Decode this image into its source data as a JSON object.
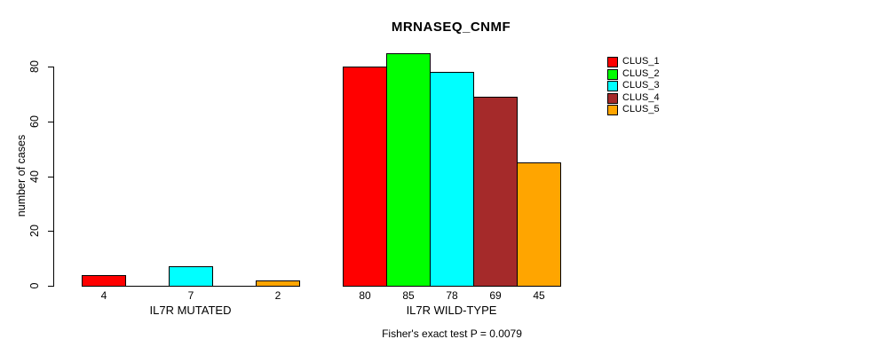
{
  "chart_data": {
    "type": "bar",
    "title": "MRNASEQ_CNMF",
    "ylabel": "number of cases",
    "xlabel": "",
    "ylim": [
      0,
      85
    ],
    "yticks": [
      0,
      20,
      40,
      60,
      80
    ],
    "grid": false,
    "legend_position": "right",
    "categories": [
      "IL7R MUTATED",
      "IL7R WILD-TYPE"
    ],
    "series": [
      {
        "name": "CLUS_1",
        "color": "#FF0000",
        "values": [
          4,
          80
        ]
      },
      {
        "name": "CLUS_2",
        "color": "#00FF00",
        "values": [
          0,
          85
        ]
      },
      {
        "name": "CLUS_3",
        "color": "#00FFFF",
        "values": [
          7,
          78
        ]
      },
      {
        "name": "CLUS_4",
        "color": "#A52A2A",
        "values": [
          0,
          69
        ]
      },
      {
        "name": "CLUS_5",
        "color": "#FFA500",
        "values": [
          2,
          45
        ]
      }
    ],
    "bar_value_labels": {
      "show": true,
      "hide_zero": true
    },
    "annotation": "Fisher's exact test P = 0.0079",
    "axis_color": "#000000",
    "background": "#FFFFFF"
  }
}
